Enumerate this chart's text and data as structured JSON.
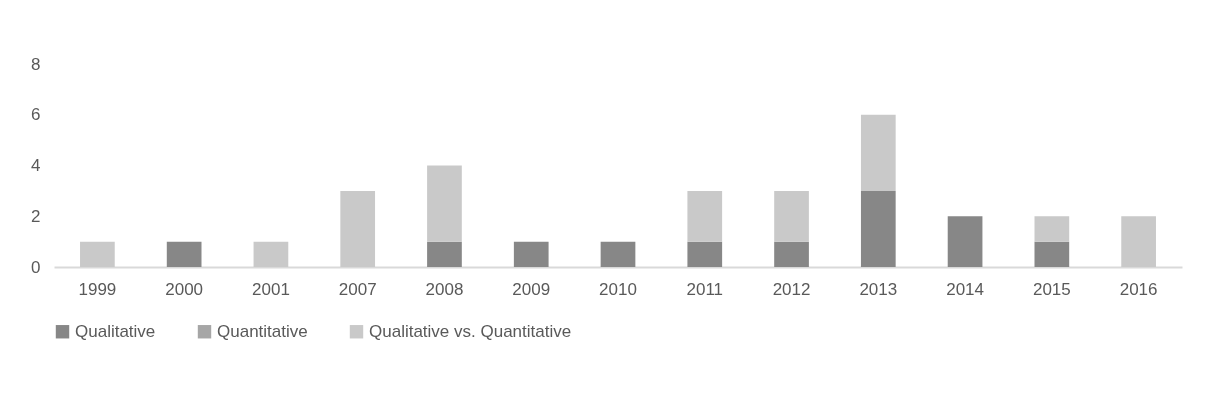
{
  "chart_data": {
    "type": "bar",
    "stacked": true,
    "categories": [
      "1999",
      "2000",
      "2001",
      "2007",
      "2008",
      "2009",
      "2010",
      "2011",
      "2012",
      "2013",
      "2014",
      "2015",
      "2016"
    ],
    "series": [
      {
        "name": "Qualitative",
        "color": "#878787",
        "values": [
          0,
          1,
          0,
          0,
          1,
          1,
          1,
          1,
          1,
          3,
          2,
          1,
          0
        ]
      },
      {
        "name": "Quantitative",
        "color": "#a6a6a6",
        "values": [
          0,
          0,
          0,
          0,
          0,
          0,
          0,
          0,
          0,
          0,
          0,
          0,
          0
        ]
      },
      {
        "name": "Qualitative vs. Quantitative",
        "color": "#c9c9c9",
        "values": [
          1,
          0,
          1,
          3,
          3,
          0,
          0,
          2,
          2,
          3,
          0,
          1,
          2
        ]
      }
    ],
    "ylim": [
      0,
      8
    ],
    "yticks": [
      0,
      2,
      4,
      6,
      8
    ],
    "grid": false,
    "legend": "bottom"
  }
}
